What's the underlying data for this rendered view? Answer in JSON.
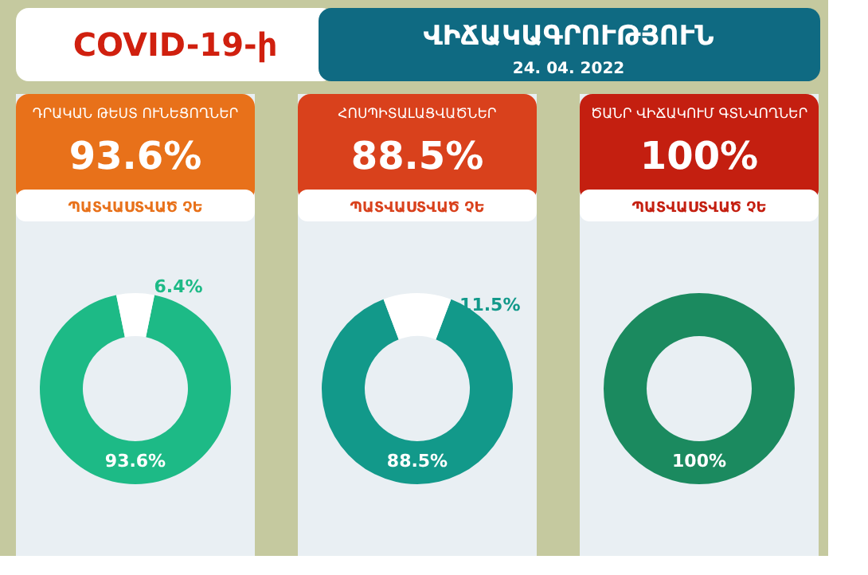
{
  "chart_data": [
    {
      "type": "other",
      "title": "COVID-19-ի",
      "subtitle": "ՎԻՃԱԿԱԳՐՈՒԹՅՈՒՆ",
      "annotations": [
        "24. 04. 2022"
      ]
    },
    {
      "type": "donut",
      "title": "ԴՐԱԿԱՆ ԹԵՍՏ ՈՒՆԵՑՈՂՆԵՐ",
      "subtitle": "93.6%",
      "annotations": [
        "ՊԱՏՎԱՍՏՎԱԾ ՉԵ"
      ],
      "categories": [
        null,
        null
      ],
      "values": [
        93.6,
        6.4
      ],
      "colors": [
        "#1dba86",
        "#ffffff"
      ],
      "value_labels": [
        "93.6%",
        "6.4%"
      ]
    },
    {
      "type": "donut",
      "title": "ՀՈՍՊԻՏԱԼԱՑՎԱԾՆԵՐ",
      "subtitle": "88.5%",
      "annotations": [
        "ՊԱՏՎԱՍՏՎԱԾ ՉԵ"
      ],
      "categories": [
        null,
        null
      ],
      "values": [
        88.5,
        11.5
      ],
      "colors": [
        "#12998a",
        "#ffffff"
      ],
      "value_labels": [
        "88.5%",
        "11.5%"
      ]
    },
    {
      "type": "donut",
      "title": "ԾԱՆՐ ՎԻՃԱԿՈՒՄ ԳՏՆՎՈՂՆԵՐ",
      "subtitle": "100%",
      "annotations": [
        "ՊԱՏՎԱՍՏՎԱԾ ՉԵ"
      ],
      "categories": [
        null
      ],
      "values": [
        100
      ],
      "colors": [
        "#1b8a5f"
      ],
      "value_labels": [
        "100%"
      ]
    }
  ]
}
